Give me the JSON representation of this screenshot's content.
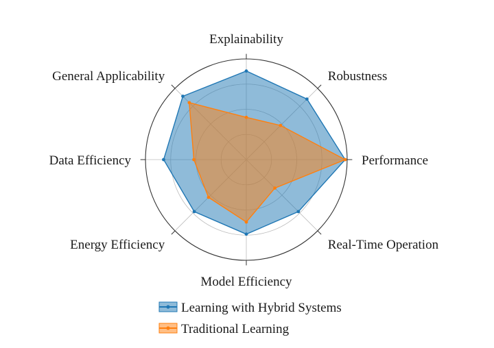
{
  "chart_data": {
    "type": "radar",
    "axes": [
      "Explainability",
      "Robustness",
      "Performance",
      "Real-Time Operation",
      "Model Efficiency",
      "Energy Efficiency",
      "Data Efficiency",
      "General Applicability"
    ],
    "rlim": [
      0,
      1
    ],
    "grid_levels": [
      0.25,
      0.5,
      0.75,
      1.0
    ],
    "grid": true,
    "legend_position": "bottom",
    "series": [
      {
        "name": "Learning with Hybrid Systems",
        "values": [
          0.88,
          0.85,
          0.98,
          0.73,
          0.74,
          0.73,
          0.82,
          0.89
        ],
        "color": "#1f77b4"
      },
      {
        "name": "Traditional Learning",
        "values": [
          0.42,
          0.48,
          0.98,
          0.4,
          0.62,
          0.53,
          0.52,
          0.8
        ],
        "color": "#ff7f0e"
      }
    ]
  }
}
